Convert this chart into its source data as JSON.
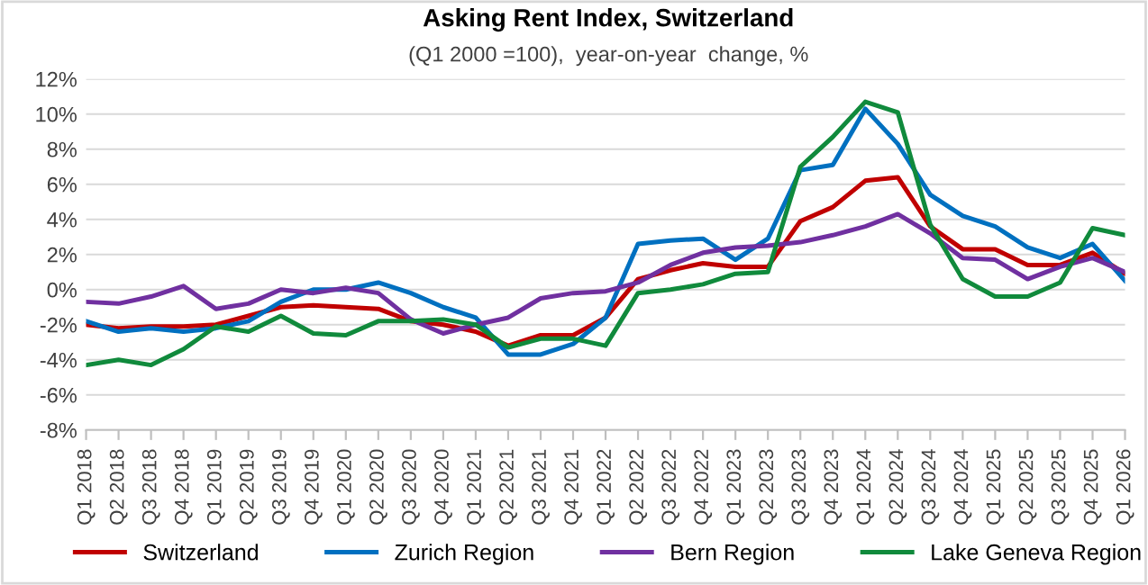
{
  "chart_data": {
    "type": "line",
    "title": "Asking Rent Index, Switzerland",
    "subtitle": "(Q1 2000 =100),  year-on-year  change, %",
    "categories": [
      "Q1 2018",
      "Q2 2018",
      "Q3 2018",
      "Q4 2018",
      "Q1 2019",
      "Q2 2019",
      "Q3 2019",
      "Q4 2019",
      "Q1 2020",
      "Q2 2020",
      "Q3 2020",
      "Q4 2020",
      "Q1 2021",
      "Q2 2021",
      "Q3 2021",
      "Q4 2021",
      "Q1 2022",
      "Q2 2022",
      "Q3 2022",
      "Q4 2022",
      "Q1 2023",
      "Q2 2023",
      "Q3 2023",
      "Q4 2023",
      "Q1 2024",
      "Q2 2024",
      "Q3 2024",
      "Q4 2024",
      "Q1 2025",
      "Q2 2025",
      "Q3 2025",
      "Q4 2025",
      "Q1 2026"
    ],
    "series": [
      {
        "name": "Switzerland",
        "color": "#c00000",
        "values": [
          -2.0,
          -2.2,
          -2.1,
          -2.1,
          -2.0,
          -1.5,
          -1.0,
          -0.9,
          -1.0,
          -1.1,
          -1.8,
          -2.0,
          -2.4,
          -3.2,
          -2.6,
          -2.6,
          -1.6,
          0.6,
          1.1,
          1.5,
          1.3,
          1.3,
          3.9,
          4.7,
          6.2,
          6.4,
          3.6,
          2.3,
          2.3,
          1.4,
          1.4,
          2.1,
          0.9
        ]
      },
      {
        "name": "Zurich Region",
        "color": "#0070c0",
        "values": [
          -1.8,
          -2.4,
          -2.2,
          -2.4,
          -2.2,
          -1.8,
          -0.7,
          0.0,
          0.0,
          0.4,
          -0.2,
          -1.0,
          -1.6,
          -3.7,
          -3.7,
          -3.1,
          -1.6,
          2.6,
          2.8,
          2.9,
          1.7,
          2.9,
          6.8,
          7.1,
          10.3,
          8.3,
          5.4,
          4.2,
          3.6,
          2.4,
          1.8,
          2.6,
          0.5
        ]
      },
      {
        "name": "Bern Region",
        "color": "#7030a0",
        "values": [
          -0.7,
          -0.8,
          -0.4,
          0.2,
          -1.1,
          -0.8,
          0.0,
          -0.2,
          0.1,
          -0.2,
          -1.7,
          -2.5,
          -2.0,
          -1.6,
          -0.5,
          -0.2,
          -0.1,
          0.4,
          1.4,
          2.1,
          2.4,
          2.5,
          2.7,
          3.1,
          3.6,
          4.3,
          3.2,
          1.8,
          1.7,
          0.6,
          1.3,
          1.8,
          1.0
        ]
      },
      {
        "name": "Lake Geneva Region",
        "color": "#108a3c",
        "values": [
          -4.3,
          -4.0,
          -4.3,
          -3.4,
          -2.1,
          -2.4,
          -1.5,
          -2.5,
          -2.6,
          -1.8,
          -1.8,
          -1.7,
          -2.0,
          -3.3,
          -2.8,
          -2.8,
          -3.2,
          -0.2,
          0.0,
          0.3,
          0.9,
          1.0,
          7.0,
          8.7,
          10.7,
          10.1,
          3.7,
          0.6,
          -0.4,
          -0.4,
          0.4,
          3.5,
          3.1
        ]
      }
    ],
    "ylim": [
      -8,
      12
    ],
    "yticks": [
      {
        "value": -8,
        "label": "-8%"
      },
      {
        "value": -6,
        "label": "-6%"
      },
      {
        "value": -4,
        "label": "-4%"
      },
      {
        "value": -2,
        "label": "-2%"
      },
      {
        "value": 0,
        "label": "0%"
      },
      {
        "value": 2,
        "label": "2%"
      },
      {
        "value": 4,
        "label": "4%"
      },
      {
        "value": 6,
        "label": "6%"
      },
      {
        "value": 8,
        "label": "8%"
      },
      {
        "value": 10,
        "label": "10%"
      },
      {
        "value": 12,
        "label": "12%"
      }
    ],
    "grid": "y",
    "legend": "bottom",
    "marker": "none",
    "line_style": "solid"
  }
}
